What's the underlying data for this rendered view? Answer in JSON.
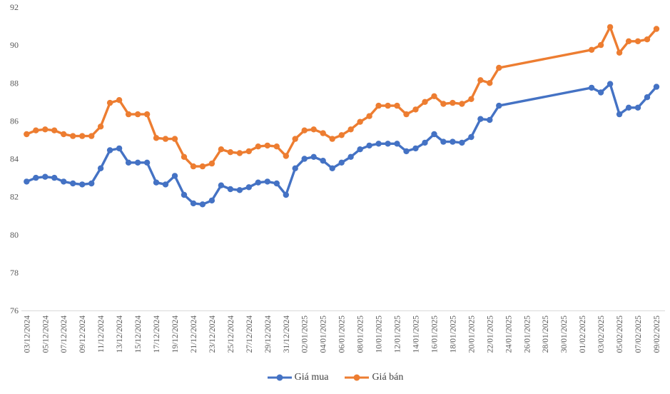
{
  "chart_data": {
    "type": "line",
    "title": "",
    "xlabel": "",
    "ylabel": "",
    "ylim": [
      76,
      92
    ],
    "y_ticks": [
      76,
      78,
      80,
      82,
      84,
      86,
      88,
      90,
      92
    ],
    "x_label_interval": 2,
    "grid": false,
    "legend_position": "bottom-center",
    "axis_color": "#d9d9d9",
    "text_color": "#595959",
    "x": [
      "03/12/2024",
      "04/12/2024",
      "05/12/2024",
      "06/12/2024",
      "07/12/2024",
      "08/12/2024",
      "09/12/2024",
      "10/12/2024",
      "11/12/2024",
      "12/12/2024",
      "13/12/2024",
      "14/12/2024",
      "15/12/2024",
      "16/12/2024",
      "17/12/2024",
      "18/12/2024",
      "19/12/2024",
      "20/12/2024",
      "21/12/2024",
      "22/12/2024",
      "23/12/2024",
      "24/12/2024",
      "25/12/2024",
      "26/12/2024",
      "27/12/2024",
      "28/12/2024",
      "29/12/2024",
      "30/12/2024",
      "31/12/2024",
      "01/01/2025",
      "02/01/2025",
      "03/01/2025",
      "04/01/2025",
      "05/01/2025",
      "06/01/2025",
      "07/01/2025",
      "08/01/2025",
      "09/01/2025",
      "10/01/2025",
      "11/01/2025",
      "12/01/2025",
      "13/01/2025",
      "14/01/2025",
      "15/01/2025",
      "16/01/2025",
      "17/01/2025",
      "18/01/2025",
      "19/01/2025",
      "20/01/2025",
      "21/01/2025",
      "22/01/2025",
      "23/01/2025",
      "24/01/2025",
      "25/01/2025",
      "26/01/2025",
      "27/01/2025",
      "28/01/2025",
      "29/01/2025",
      "30/01/2025",
      "31/01/2025",
      "01/02/2025",
      "02/02/2025",
      "03/02/2025",
      "04/02/2025",
      "05/02/2025",
      "06/02/2025",
      "07/02/2025",
      "08/02/2025",
      "09/02/2025"
    ],
    "series": [
      {
        "name": "Giá mua",
        "color": "#4472c4",
        "values": [
          82.8,
          83.0,
          83.05,
          83.0,
          82.8,
          82.7,
          82.65,
          82.7,
          83.5,
          84.45,
          84.55,
          83.8,
          83.8,
          83.8,
          82.75,
          82.65,
          83.1,
          82.1,
          81.65,
          81.6,
          81.8,
          82.6,
          82.4,
          82.35,
          82.5,
          82.75,
          82.8,
          82.7,
          82.1,
          83.5,
          84.0,
          84.1,
          83.9,
          83.5,
          83.8,
          84.1,
          84.5,
          84.7,
          84.8,
          84.8,
          84.8,
          84.4,
          84.55,
          84.85,
          85.3,
          84.9,
          84.9,
          84.85,
          85.15,
          86.1,
          86.05,
          86.8,
          null,
          null,
          null,
          null,
          null,
          null,
          null,
          null,
          null,
          87.75,
          87.5,
          87.95,
          86.35,
          86.7,
          86.7,
          87.25,
          87.8
        ]
      },
      {
        "name": "Giá bán",
        "color": "#ed7d31",
        "values": [
          85.3,
          85.5,
          85.55,
          85.5,
          85.3,
          85.2,
          85.2,
          85.2,
          85.7,
          86.95,
          87.1,
          86.35,
          86.35,
          86.35,
          85.1,
          85.05,
          85.05,
          84.1,
          83.6,
          83.6,
          83.75,
          84.5,
          84.35,
          84.3,
          84.4,
          84.65,
          84.7,
          84.65,
          84.15,
          85.05,
          85.5,
          85.55,
          85.35,
          85.05,
          85.25,
          85.55,
          85.95,
          86.25,
          86.8,
          86.8,
          86.8,
          86.35,
          86.6,
          87.0,
          87.3,
          86.9,
          86.95,
          86.9,
          87.15,
          88.15,
          88.0,
          88.8,
          null,
          null,
          null,
          null,
          null,
          null,
          null,
          null,
          null,
          89.75,
          90.0,
          90.95,
          89.6,
          90.2,
          90.2,
          90.3,
          90.85
        ]
      }
    ],
    "legend": {
      "buy_label": "Giá mua",
      "sell_label": "Giá bán"
    }
  }
}
